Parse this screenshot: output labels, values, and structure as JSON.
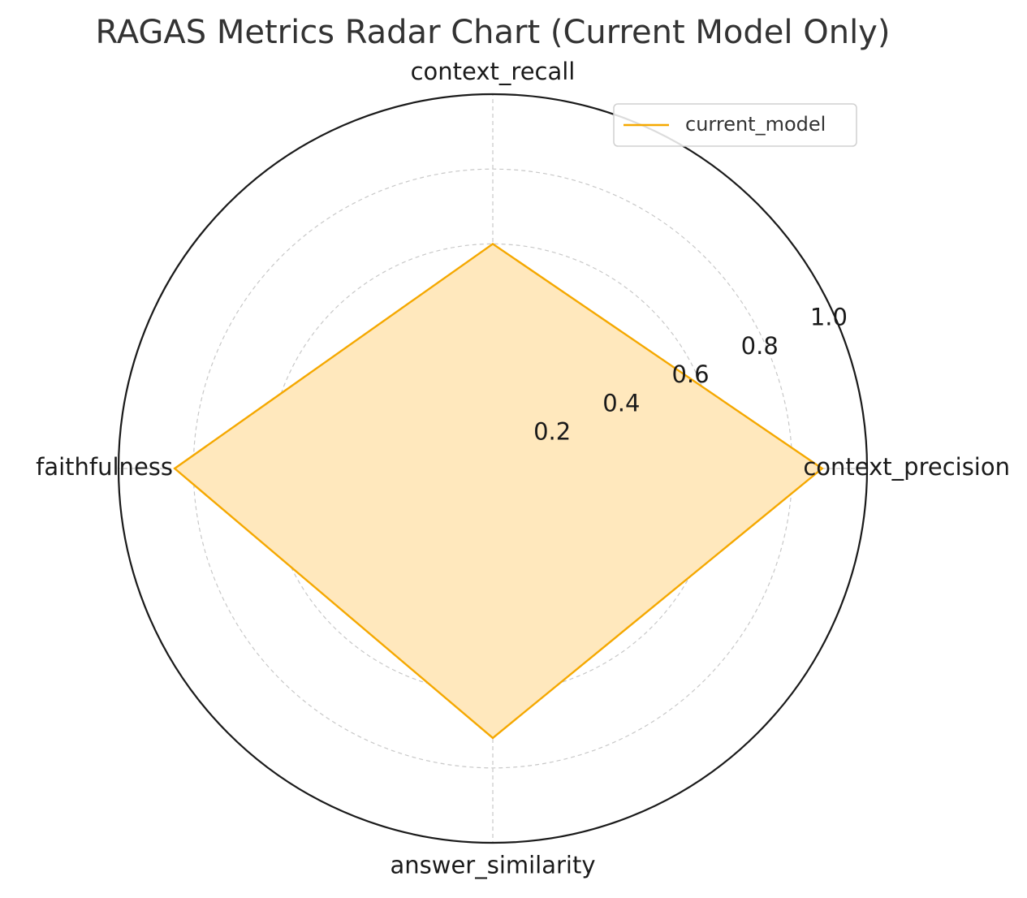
{
  "chart_data": {
    "type": "radar",
    "title": "RAGAS Metrics Radar Chart (Current Model Only)",
    "axes": [
      "context_precision",
      "context_recall",
      "faithfulness",
      "answer_similarity"
    ],
    "rlim": [
      0,
      1.0
    ],
    "rticks": [
      0.2,
      0.4,
      0.6,
      0.8,
      1.0
    ],
    "rtick_labels": [
      "0.2",
      "0.4",
      "0.6",
      "0.8",
      "1.0"
    ],
    "grid": true,
    "legend_position": "top-right",
    "series": [
      {
        "name": "current_model",
        "values": [
          0.88,
          0.6,
          0.85,
          0.72
        ],
        "color": "#f5a800",
        "fill_color": "#ffe8bd"
      }
    ]
  }
}
